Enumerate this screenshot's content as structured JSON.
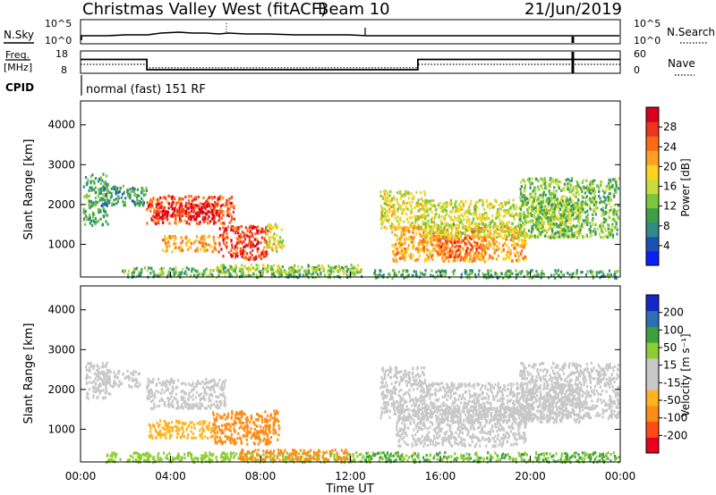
{
  "header": {
    "station": "Christmas Valley West (fitACF)",
    "beam": "Beam 10",
    "date": "21/Jun/2019"
  },
  "top_panels": {
    "sky_label": "N.Sky",
    "search_label": "N.Search",
    "count_ticks": [
      "10^5",
      "10^0"
    ],
    "freq_label_1": "Freq.",
    "freq_label_2": "[MHz]",
    "freq_ticks": [
      "18",
      "8"
    ],
    "nave_label": "Nave",
    "nave_ticks": [
      "60",
      "0"
    ],
    "cpid_label": "CPID",
    "cpid_text": "normal (fast) 151 RF",
    "freq_mhz": {
      "time_hours": [
        0,
        2.95,
        2.95,
        15.0,
        15.0,
        24
      ],
      "values": [
        14.2,
        14.2,
        9.6,
        9.6,
        14.2,
        14.2
      ]
    },
    "nave": {
      "time_hours": [
        0,
        2.95,
        2.95,
        15.0,
        15.0,
        24
      ],
      "values": [
        24,
        24,
        15,
        15,
        24,
        24
      ]
    }
  },
  "chart_data": [
    {
      "type": "heatmap",
      "title": "",
      "xlabel": "",
      "ylabel": "Slant Range [km]",
      "xlim_hours": [
        0,
        24
      ],
      "ylim": [
        180,
        4600
      ],
      "yticks": [
        1000,
        2000,
        3000,
        4000
      ],
      "colorbar_label": "Power [dB]",
      "colorbar_ticks": [
        "4",
        "8",
        "12",
        "16",
        "20",
        "24",
        "28"
      ],
      "colorbar_colors": [
        "#0a1fff",
        "#1c4fb8",
        "#2f8a8c",
        "#3e9e4a",
        "#7cc83a",
        "#c8dc3a",
        "#ffd21e",
        "#ffa020",
        "#ff6a14",
        "#f0321e",
        "#d8001e"
      ],
      "regions": [
        {
          "t0": 0.1,
          "t1": 1.2,
          "r0": 1500,
          "r1": 2800,
          "value": 11
        },
        {
          "t0": 0.9,
          "t1": 2.9,
          "r0": 2000,
          "r1": 2500,
          "value": 10
        },
        {
          "t0": 2.9,
          "t1": 6.8,
          "r0": 1550,
          "r1": 2250,
          "value": 25
        },
        {
          "t0": 3.3,
          "t1": 6.2,
          "r0": 1650,
          "r1": 2050,
          "value": 28
        },
        {
          "t0": 3.6,
          "t1": 6.0,
          "r0": 850,
          "r1": 1250,
          "value": 20
        },
        {
          "t0": 6.1,
          "t1": 8.3,
          "r0": 650,
          "r1": 1500,
          "value": 26
        },
        {
          "t0": 8.2,
          "t1": 9.0,
          "r0": 850,
          "r1": 1550,
          "value": 17
        },
        {
          "t0": 1.8,
          "t1": 12.5,
          "r0": 200,
          "r1": 450,
          "value": 12
        },
        {
          "t0": 6.0,
          "t1": 12.3,
          "r0": 330,
          "r1": 520,
          "value": 15
        },
        {
          "t0": 13.3,
          "t1": 15.3,
          "r0": 1400,
          "r1": 2400,
          "value": 17
        },
        {
          "t0": 13.8,
          "t1": 19.8,
          "r0": 600,
          "r1": 1500,
          "value": 21
        },
        {
          "t0": 15.8,
          "t1": 18.0,
          "r0": 700,
          "r1": 1250,
          "value": 24
        },
        {
          "t0": 15.2,
          "t1": 22.3,
          "r0": 1200,
          "r1": 2150,
          "value": 16
        },
        {
          "t0": 19.5,
          "t1": 23.9,
          "r0": 1200,
          "r1": 2700,
          "value": 13
        },
        {
          "t0": 13.0,
          "t1": 23.9,
          "r0": 180,
          "r1": 380,
          "value": 11
        }
      ]
    },
    {
      "type": "heatmap",
      "title": "",
      "xlabel": "Time UT",
      "ylabel": "Slant Range [km]",
      "xlim_hours": [
        0,
        24
      ],
      "ylim": [
        180,
        4600
      ],
      "yticks": [
        1000,
        2000,
        3000,
        4000
      ],
      "xticks": [
        "00:00",
        "04:00",
        "08:00",
        "12:00",
        "16:00",
        "20:00",
        "00:00"
      ],
      "colorbar_label": "Velocity [m s⁻¹]",
      "colorbar_ticks": [
        "-200",
        "-100",
        "-50",
        "-15",
        "15",
        "50",
        "100",
        "200"
      ],
      "colorbar_colors": [
        "#e8001e",
        "#ff4b14",
        "#ff8c14",
        "#ffb41e",
        "#c8c8c8",
        "#c8c8c8",
        "#8ccd32",
        "#3ca03c",
        "#2d6eb4",
        "#1428c8"
      ],
      "regions": [
        {
          "t0": 0.2,
          "t1": 1.3,
          "r0": 1800,
          "r1": 2700,
          "value": 0
        },
        {
          "t0": 0.8,
          "t1": 2.6,
          "r0": 2100,
          "r1": 2500,
          "value": 0
        },
        {
          "t0": 2.9,
          "t1": 6.4,
          "r0": 1550,
          "r1": 2300,
          "value": 0
        },
        {
          "t0": 3.0,
          "t1": 6.0,
          "r0": 800,
          "r1": 1250,
          "value": -40
        },
        {
          "t0": 5.8,
          "t1": 8.8,
          "r0": 650,
          "r1": 1500,
          "value": -60
        },
        {
          "t0": 1.0,
          "t1": 12.5,
          "r0": 200,
          "r1": 450,
          "value": 25
        },
        {
          "t0": 7.0,
          "t1": 12.0,
          "r0": 250,
          "r1": 520,
          "value": -80
        },
        {
          "t0": 13.3,
          "t1": 15.3,
          "r0": 1300,
          "r1": 2600,
          "value": 0
        },
        {
          "t0": 14.0,
          "t1": 19.8,
          "r0": 600,
          "r1": 1600,
          "value": 0
        },
        {
          "t0": 15.2,
          "t1": 22.3,
          "r0": 1200,
          "r1": 2200,
          "value": 0
        },
        {
          "t0": 19.5,
          "t1": 23.9,
          "r0": 1300,
          "r1": 2700,
          "value": 0
        },
        {
          "t0": 12.5,
          "t1": 23.9,
          "r0": 200,
          "r1": 450,
          "value": 30
        }
      ]
    }
  ]
}
